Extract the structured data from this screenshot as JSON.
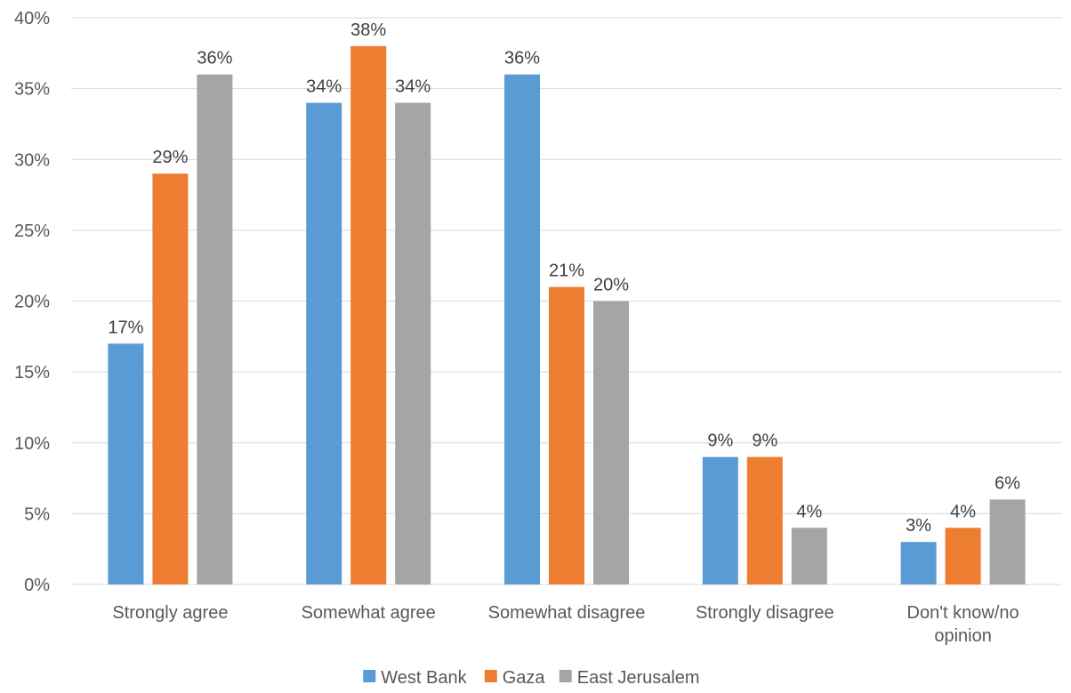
{
  "chart_data": {
    "type": "bar",
    "categories": [
      "Strongly agree",
      "Somewhat agree",
      "Somewhat disagree",
      "Strongly disagree",
      "Don't know/no opinion"
    ],
    "category_lines": [
      [
        "Strongly agree"
      ],
      [
        "Somewhat agree"
      ],
      [
        "Somewhat disagree"
      ],
      [
        "Strongly disagree"
      ],
      [
        "Don't know/no",
        "opinion"
      ]
    ],
    "series": [
      {
        "name": "West Bank",
        "color": "#5b9bd5",
        "values": [
          17,
          34,
          36,
          9,
          3
        ]
      },
      {
        "name": "Gaza",
        "color": "#ed7d31",
        "values": [
          29,
          38,
          21,
          9,
          4
        ]
      },
      {
        "name": "East Jerusalem",
        "color": "#a5a5a5",
        "values": [
          36,
          34,
          20,
          4,
          6
        ]
      }
    ],
    "ylim": [
      0,
      40
    ],
    "yticks": [
      0,
      5,
      10,
      15,
      20,
      25,
      30,
      35,
      40
    ],
    "value_suffix": "%",
    "grid": true,
    "legend_position": "bottom-center"
  }
}
